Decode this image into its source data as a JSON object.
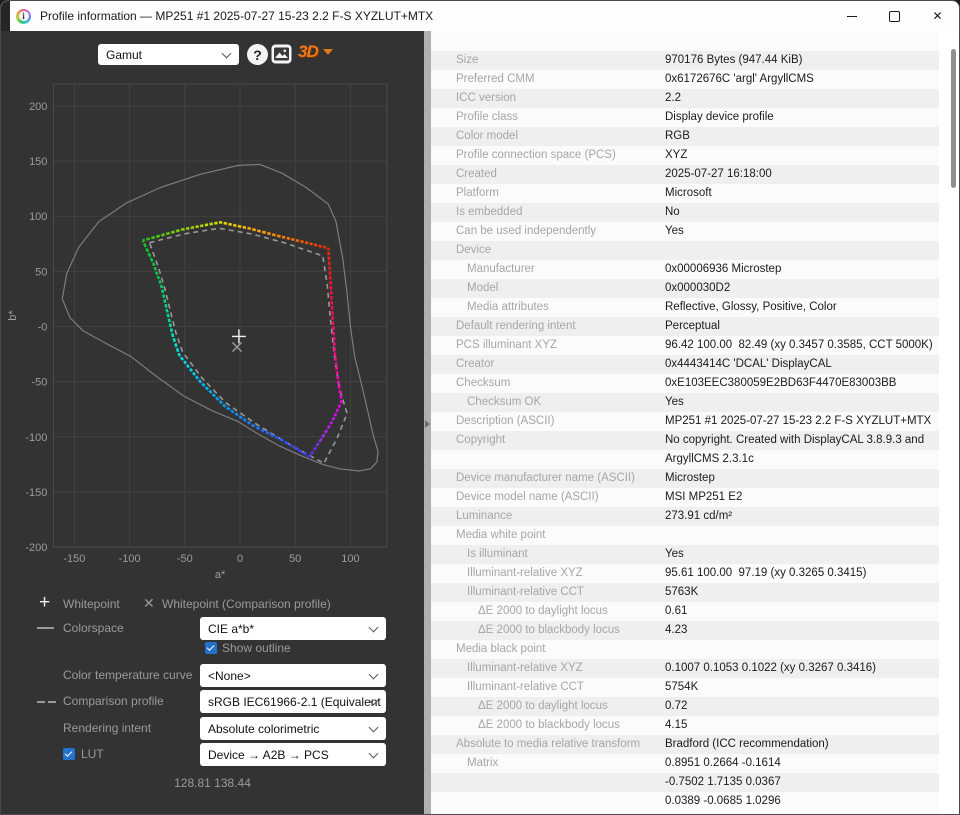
{
  "window": {
    "title": "Profile information — MP251 #1 2025-07-27 15-23 2.2 F-S XYZLUT+MTX",
    "close_glyph": "✕"
  },
  "toolbar": {
    "view_select_value": "Gamut",
    "help_label": "?",
    "threed_label": "3D"
  },
  "side_controls": {
    "legend": [
      {
        "glyph": "+",
        "label": "Whitepoint"
      },
      {
        "glyph": "✕",
        "label": "Whitepoint (Comparison profile)"
      }
    ],
    "colorspace": {
      "label": "Colorspace",
      "value": "CIE a*b*"
    },
    "show_outline": {
      "label": "Show outline",
      "checked": true
    },
    "color_temperature_curve": {
      "label": "Color temperature curve",
      "value": "<None>"
    },
    "comparison_profile": {
      "label": "Comparison profile",
      "value": "sRGB IEC61966-2.1 (Equivalent"
    },
    "rendering_intent": {
      "label": "Rendering intent",
      "value": "Absolute colorimetric"
    },
    "lut": {
      "label": "LUT",
      "checked": true,
      "value": "Device → A2B → PCS"
    },
    "status": "128.81 138.44"
  },
  "colors": {
    "panel_bg": "#333333",
    "grid": "#424242",
    "frame": "#4a4a4a",
    "tick_text": "#9c9c9c",
    "accent_blue": "#2472cc",
    "threed_orange": "#f07818",
    "row_alt": "#efefef"
  },
  "chart_data": {
    "type": "line",
    "title": "Gamut (CIE a*b*)",
    "xlabel": "a*",
    "ylabel": "b*",
    "xlim": [
      -169,
      133
    ],
    "ylim": [
      -200,
      220
    ],
    "grid": true,
    "xticks": [
      -150,
      -100,
      -50,
      0,
      50,
      100
    ],
    "xtick_labels": [
      "-150",
      "-100",
      "-50",
      "0",
      "50",
      "100"
    ],
    "yticks": [
      200,
      150,
      100,
      50,
      0,
      -50,
      -100,
      -150,
      -200
    ],
    "ytick_labels": [
      "200",
      "150",
      "100",
      "50",
      "-0",
      "-50",
      "-100",
      "-150",
      "-200"
    ],
    "series": [
      {
        "name": "Spectral locus outline",
        "style": "solid",
        "closed": true,
        "color": "#7c7c7c",
        "points": [
          [
            -161,
            25
          ],
          [
            -157,
            48
          ],
          [
            -146,
            72
          ],
          [
            -128,
            95
          ],
          [
            -103,
            112
          ],
          [
            -72,
            126
          ],
          [
            -36,
            138
          ],
          [
            -2,
            146
          ],
          [
            18,
            147
          ],
          [
            38,
            139
          ],
          [
            60,
            126
          ],
          [
            80,
            111
          ],
          [
            87,
            95
          ],
          [
            93,
            62
          ],
          [
            97,
            30
          ],
          [
            100,
            0
          ],
          [
            104,
            -28
          ],
          [
            110,
            -52
          ],
          [
            116,
            -78
          ],
          [
            121,
            -100
          ],
          [
            125,
            -113
          ],
          [
            124,
            -123
          ],
          [
            118,
            -129
          ],
          [
            108,
            -131
          ],
          [
            90,
            -129
          ],
          [
            75,
            -125
          ],
          [
            55,
            -117
          ],
          [
            35,
            -108
          ],
          [
            14,
            -96
          ],
          [
            -2,
            -86
          ],
          [
            -26,
            -76
          ],
          [
            -51,
            -63
          ],
          [
            -76,
            -45
          ],
          [
            -99,
            -27
          ],
          [
            -122,
            -15
          ],
          [
            -142,
            -4
          ],
          [
            -154,
            8
          ]
        ]
      },
      {
        "name": "Comparison profile sRGB IEC61966-2.1",
        "style": "dashed",
        "closed": true,
        "color": "#999999",
        "points": [
          [
            -82,
            76
          ],
          [
            -50,
            84
          ],
          [
            -19,
            89
          ],
          [
            10,
            84
          ],
          [
            40,
            76
          ],
          [
            75,
            64
          ],
          [
            79,
            38
          ],
          [
            82,
            6
          ],
          [
            86,
            -30
          ],
          [
            90,
            -56
          ],
          [
            97,
            -79
          ],
          [
            88,
            -101
          ],
          [
            76,
            -124
          ],
          [
            45,
            -107
          ],
          [
            14,
            -88
          ],
          [
            -13,
            -69
          ],
          [
            -35,
            -46
          ],
          [
            -52,
            -23
          ],
          [
            -58,
            -6
          ],
          [
            -63,
            14
          ],
          [
            -68,
            34
          ],
          [
            -74,
            54
          ]
        ]
      },
      {
        "name": "Profile gamut",
        "style": "dotted-thick",
        "closed": true,
        "points": [
          [
            -88,
            78,
            "#1dc41d"
          ],
          [
            -52,
            88,
            "#8ed400"
          ],
          [
            -18,
            94.5,
            "#e8e800"
          ],
          [
            8,
            89,
            "#ffb400"
          ],
          [
            35,
            82,
            "#ff8c00"
          ],
          [
            60,
            76,
            "#ff5500"
          ],
          [
            80,
            71,
            "#ff2600"
          ],
          [
            82,
            40,
            "#ff0d35"
          ],
          [
            84,
            8,
            "#fa0a62"
          ],
          [
            86,
            -25,
            "#f50c8c"
          ],
          [
            89,
            -50,
            "#fa00b4"
          ],
          [
            92,
            -68,
            "#f500dc"
          ],
          [
            83,
            -87,
            "#c814f5"
          ],
          [
            73,
            -103,
            "#9632fa"
          ],
          [
            63,
            -118,
            "#5032ff"
          ],
          [
            38,
            -103,
            "#2353ff"
          ],
          [
            12,
            -90,
            "#1e7bff"
          ],
          [
            -14,
            -72,
            "#00a0ff"
          ],
          [
            -36,
            -50,
            "#00c3ff"
          ],
          [
            -55,
            -26,
            "#00e6e6"
          ],
          [
            -61,
            -8,
            "#00e6bb"
          ],
          [
            -66,
            14,
            "#00dc91"
          ],
          [
            -71,
            36,
            "#00d25f"
          ],
          [
            -78,
            56,
            "#0ccb3c"
          ]
        ]
      },
      {
        "name": "Whitepoint",
        "marker": "plus",
        "color": "#f2f2f2",
        "point": [
          -1,
          -9
        ]
      },
      {
        "name": "Whitepoint (Comparison profile)",
        "marker": "cross",
        "color": "#9f9f9f",
        "point": [
          -2.7,
          -18.6
        ]
      }
    ]
  },
  "properties": {
    "rows": [
      {
        "label": "Size",
        "value": "970176 Bytes (947.44 KiB)",
        "indent": 0
      },
      {
        "label": "Preferred CMM",
        "value": "0x6172676C 'argl' ArgyllCMS",
        "indent": 0
      },
      {
        "label": "ICC version",
        "value": "2.2",
        "indent": 0
      },
      {
        "label": "Profile class",
        "value": "Display device profile",
        "indent": 0
      },
      {
        "label": "Color model",
        "value": "RGB",
        "indent": 0
      },
      {
        "label": "Profile connection space (PCS)",
        "value": "XYZ",
        "indent": 0
      },
      {
        "label": "Created",
        "value": "2025-07-27 16:18:00",
        "indent": 0
      },
      {
        "label": "Platform",
        "value": "Microsoft",
        "indent": 0
      },
      {
        "label": "Is embedded",
        "value": "No",
        "indent": 0
      },
      {
        "label": "Can be used independently",
        "value": "Yes",
        "indent": 0
      },
      {
        "label": "Device",
        "value": "",
        "indent": 0
      },
      {
        "label": "Manufacturer",
        "value": "0x00006936 Microstep",
        "indent": 1
      },
      {
        "label": "Model",
        "value": "0x000030D2",
        "indent": 1
      },
      {
        "label": "Media attributes",
        "value": "Reflective, Glossy, Positive, Color",
        "indent": 1
      },
      {
        "label": "Default rendering intent",
        "value": "Perceptual",
        "indent": 0
      },
      {
        "label": "PCS illuminant XYZ",
        "value": "96.42 100.00  82.49 (xy 0.3457 0.3585, CCT 5000K)",
        "indent": 0
      },
      {
        "label": "Creator",
        "value": "0x4443414C 'DCAL' DisplayCAL",
        "indent": 0
      },
      {
        "label": "Checksum",
        "value": "0xE103EEC380059E2BD63F4470E83003BB",
        "indent": 0
      },
      {
        "label": "Checksum OK",
        "value": "Yes",
        "indent": 1
      },
      {
        "label": "Description (ASCII)",
        "value": "MP251 #1 2025-07-27 15-23 2.2 F-S XYZLUT+MTX",
        "indent": 0
      },
      {
        "label": "Copyright",
        "value": "No copyright. Created with DisplayCAL 3.8.9.3 and",
        "indent": 0
      },
      {
        "label": "",
        "value": "ArgyllCMS 2.3.1c",
        "indent": 0
      },
      {
        "label": "Device manufacturer name (ASCII)",
        "value": "Microstep",
        "indent": 0
      },
      {
        "label": "Device model name (ASCII)",
        "value": "MSI MP251 E2",
        "indent": 0
      },
      {
        "label": "Luminance",
        "value": "273.91 cd/m²",
        "indent": 0
      },
      {
        "label": "Media white point",
        "value": "",
        "indent": 0
      },
      {
        "label": "Is illuminant",
        "value": "Yes",
        "indent": 1
      },
      {
        "label": "Illuminant-relative XYZ",
        "value": "95.61 100.00  97.19 (xy 0.3265 0.3415)",
        "indent": 1
      },
      {
        "label": "Illuminant-relative CCT",
        "value": "5763K",
        "indent": 1
      },
      {
        "label": "ΔE 2000 to daylight locus",
        "value": "0.61",
        "indent": 2
      },
      {
        "label": "ΔE 2000 to blackbody locus",
        "value": "4.23",
        "indent": 2
      },
      {
        "label": "Media black point",
        "value": "",
        "indent": 0
      },
      {
        "label": "Illuminant-relative XYZ",
        "value": "0.1007 0.1053 0.1022 (xy 0.3267 0.3416)",
        "indent": 1
      },
      {
        "label": "Illuminant-relative CCT",
        "value": "5754K",
        "indent": 1
      },
      {
        "label": "ΔE 2000 to daylight locus",
        "value": "0.72",
        "indent": 2
      },
      {
        "label": "ΔE 2000 to blackbody locus",
        "value": "4.15",
        "indent": 2
      },
      {
        "label": "Absolute to media relative transform",
        "value": "Bradford (ICC recommendation)",
        "indent": 0
      },
      {
        "label": "Matrix",
        "value": "0.8951 0.2664 -0.1614",
        "indent": 1
      },
      {
        "label": "",
        "value": "-0.7502 1.7135 0.0367",
        "indent": 1
      },
      {
        "label": "",
        "value": "0.0389 -0.0685 1.0296",
        "indent": 1
      }
    ]
  }
}
